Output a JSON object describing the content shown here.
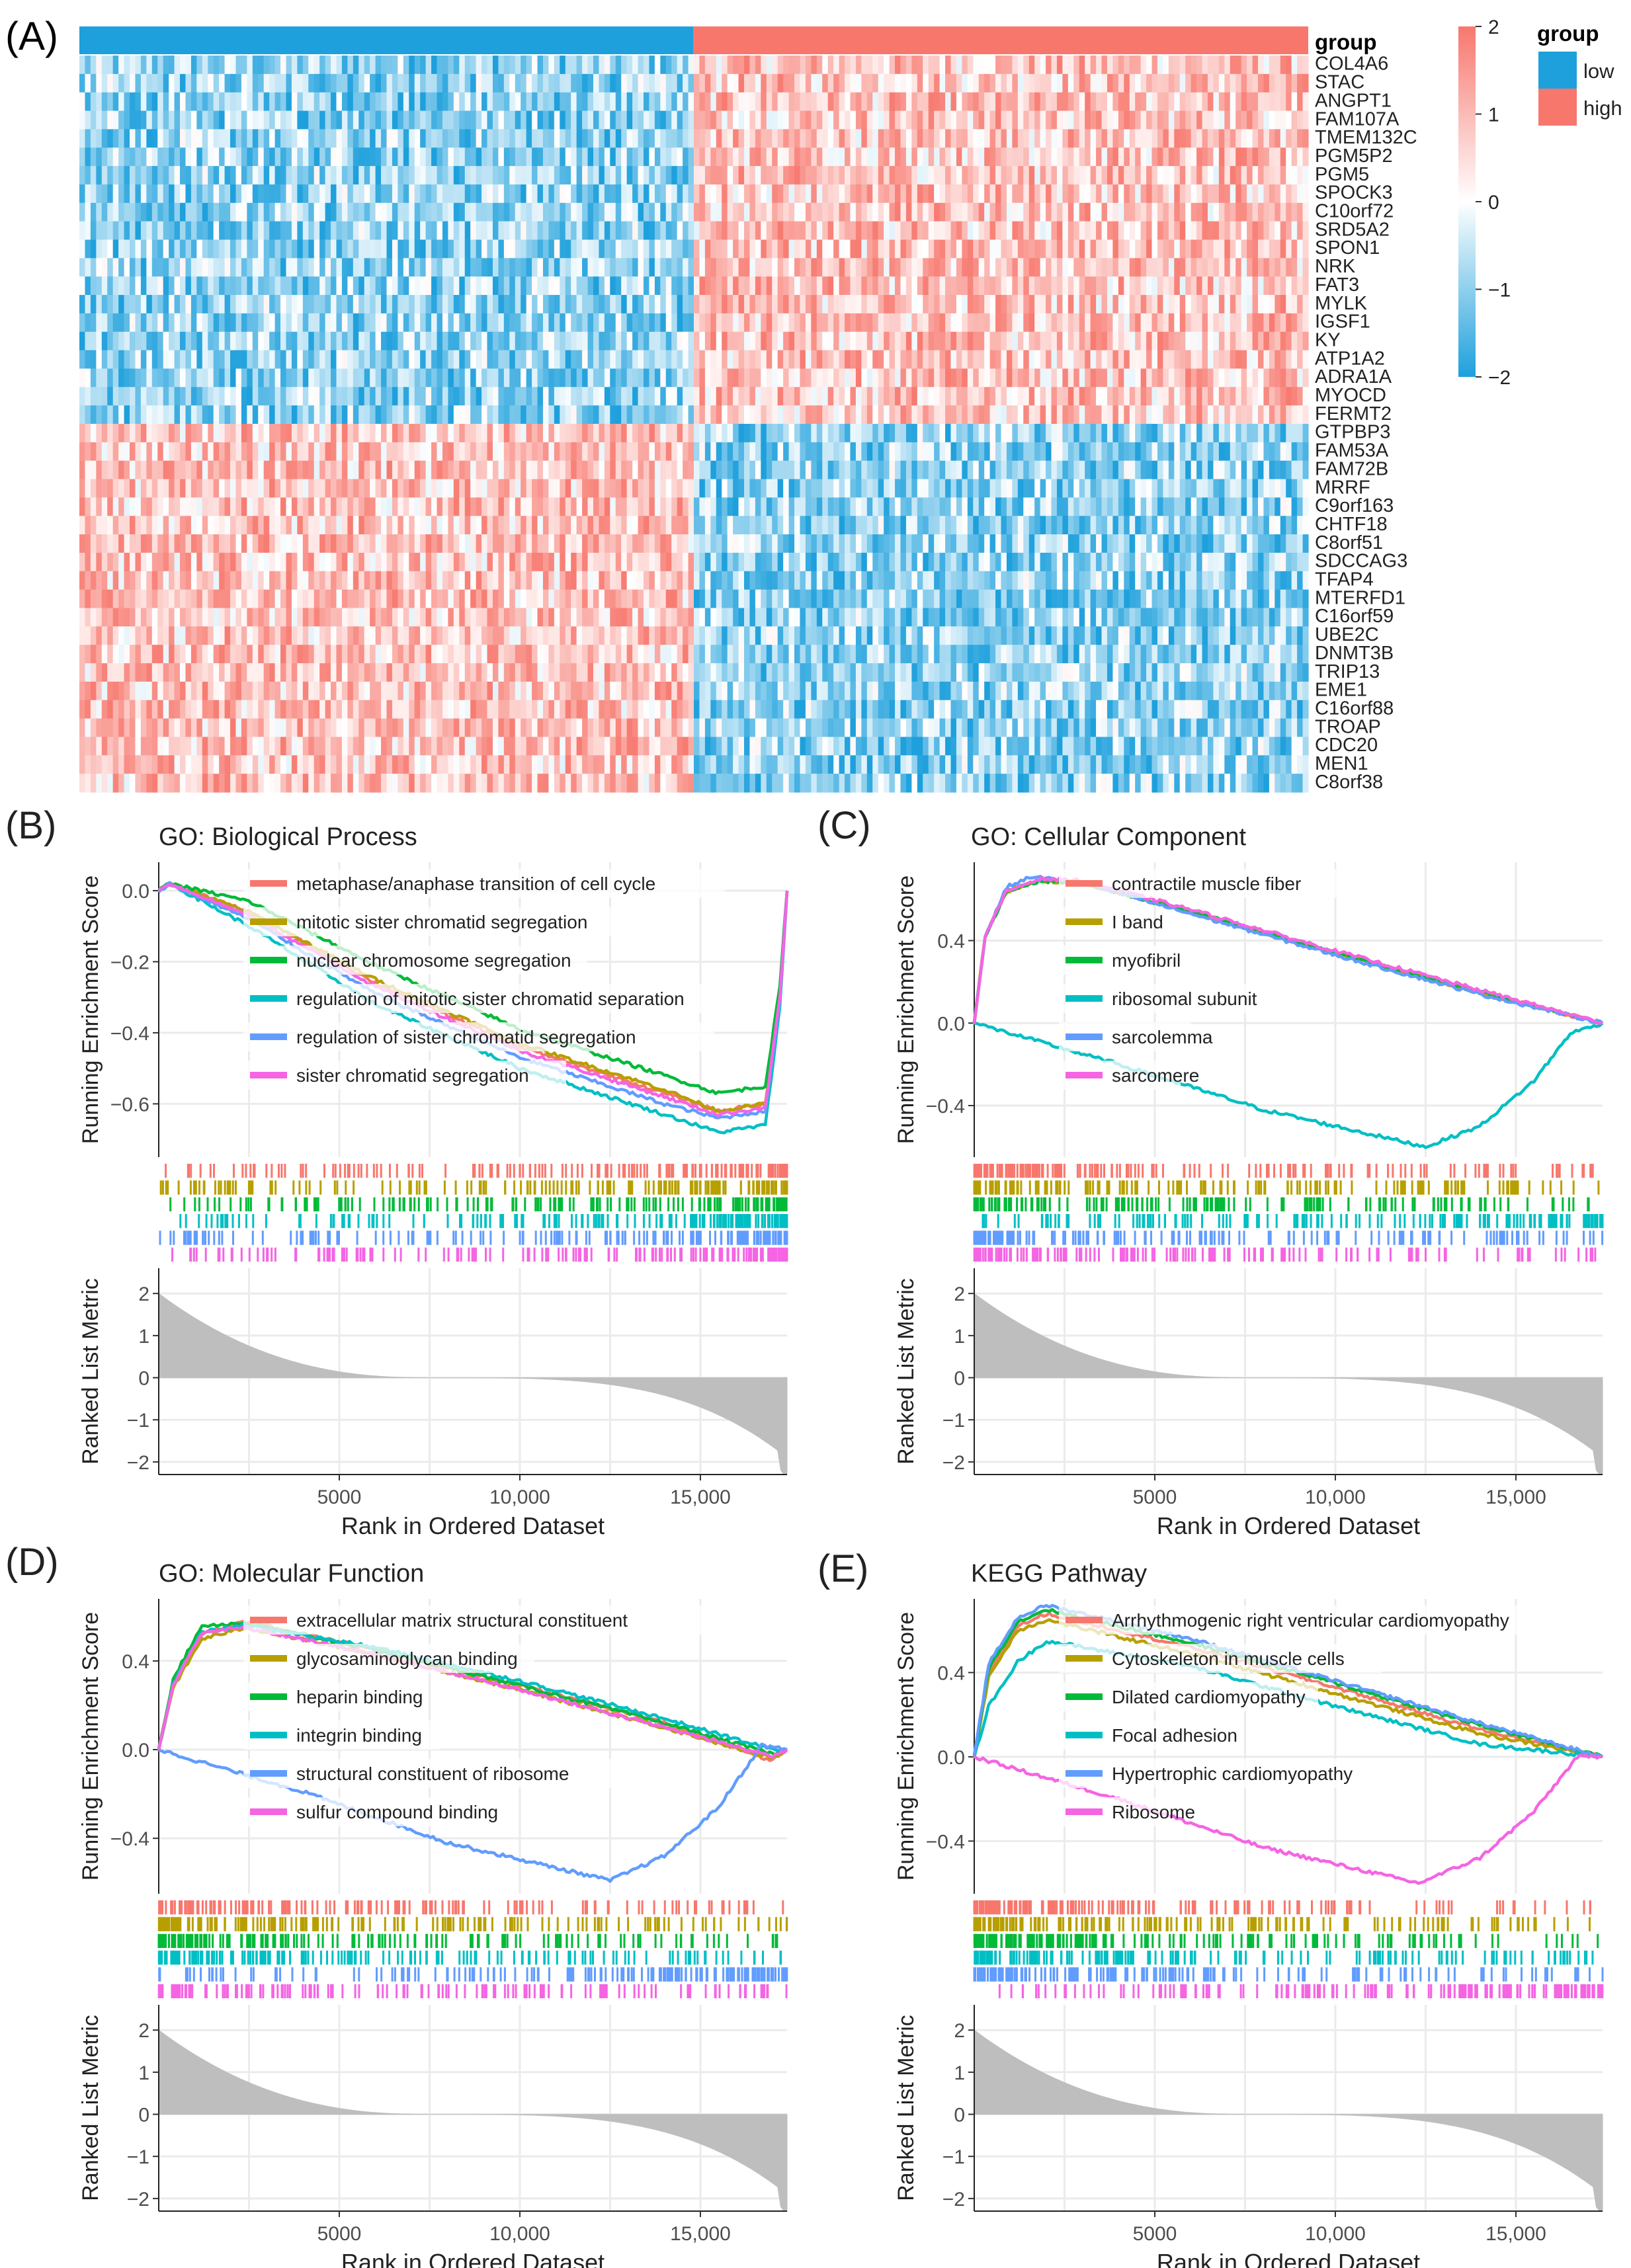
{
  "heatmap": {
    "panel_label": "(A)",
    "annotation_title": "group",
    "legend_title": "group",
    "legend_groups": [
      {
        "label": "low",
        "color": "#1ea0dc"
      },
      {
        "label": "high",
        "color": "#f7776d"
      }
    ],
    "colorbar_ticks": [
      "2",
      "1",
      "0",
      "−1",
      "−2"
    ],
    "colors": {
      "low": "#1ea0dc",
      "mid": "#ffffff",
      "high": "#f7776d"
    },
    "genes_up_in_high": [
      "COL4A6",
      "STAC",
      "ANGPT1",
      "FAM107A",
      "TMEM132C",
      "PGM5P2",
      "PGM5",
      "SPOCK3",
      "C10orf72",
      "SRD5A2",
      "SPON1",
      "NRK",
      "FAT3",
      "MYLK",
      "IGSF1",
      "KY",
      "ATP1A2",
      "ADRA1A",
      "MYOCD",
      "FERMT2"
    ],
    "genes_up_in_low": [
      "GTPBP3",
      "FAM53A",
      "FAM72B",
      "MRRF",
      "C9orf163",
      "CHTF18",
      "C8orf51",
      "SDCCAG3",
      "TFAP4",
      "MTERFD1",
      "C16orf59",
      "UBE2C",
      "DNMT3B",
      "TRIP13",
      "EME1",
      "C16orf88",
      "TROAP",
      "CDC20",
      "MEN1",
      "C8orf38"
    ]
  },
  "ylabel_es": "Running Enrichment Score",
  "ylabel_rank": "Ranked List Metric",
  "xlabel": "Rank in Ordered Dataset",
  "x_ticks": [
    "5000",
    "10,000",
    "15,000"
  ],
  "rank_ticks": [
    "2",
    "1",
    "0",
    "−1",
    "−2"
  ],
  "series_colors": [
    "#f7776d",
    "#b79f00",
    "#00ba38",
    "#00bfc4",
    "#619cff",
    "#f564e3"
  ],
  "chart_data": [
    {
      "type": "line",
      "panel_label": "(B)",
      "title": "GO: Biological Process",
      "xlim": [
        0,
        17400
      ],
      "ylim": [
        -0.75,
        0.08
      ],
      "yticks": [
        "0.0",
        "−0.2",
        "−0.4",
        "−0.6"
      ],
      "series": [
        {
          "name": "metaphase/anaphase transition of cell cycle",
          "points": [
            [
              0,
              0
            ],
            [
              300,
              0.02
            ],
            [
              2500,
              -0.06
            ],
            [
              6000,
              -0.26
            ],
            [
              10000,
              -0.44
            ],
            [
              14000,
              -0.57
            ],
            [
              15500,
              -0.62
            ],
            [
              16800,
              -0.6
            ],
            [
              17200,
              -0.3
            ],
            [
              17400,
              0
            ]
          ]
        },
        {
          "name": "mitotic sister chromatid segregation",
          "points": [
            [
              0,
              0
            ],
            [
              300,
              0.02
            ],
            [
              2500,
              -0.06
            ],
            [
              6000,
              -0.25
            ],
            [
              10000,
              -0.43
            ],
            [
              14000,
              -0.56
            ],
            [
              15500,
              -0.62
            ],
            [
              16800,
              -0.6
            ],
            [
              17200,
              -0.3
            ],
            [
              17400,
              0
            ]
          ]
        },
        {
          "name": "nuclear chromosome segregation",
          "points": [
            [
              0,
              0
            ],
            [
              300,
              0.02
            ],
            [
              2500,
              -0.03
            ],
            [
              6000,
              -0.21
            ],
            [
              10000,
              -0.39
            ],
            [
              14000,
              -0.52
            ],
            [
              15500,
              -0.57
            ],
            [
              16800,
              -0.55
            ],
            [
              17200,
              -0.27
            ],
            [
              17400,
              0
            ]
          ]
        },
        {
          "name": "regulation of mitotic sister chromatid separation",
          "points": [
            [
              0,
              0
            ],
            [
              300,
              0.02
            ],
            [
              2500,
              -0.1
            ],
            [
              6000,
              -0.32
            ],
            [
              10000,
              -0.5
            ],
            [
              14000,
              -0.63
            ],
            [
              15500,
              -0.68
            ],
            [
              16800,
              -0.66
            ],
            [
              17200,
              -0.33
            ],
            [
              17400,
              0
            ]
          ]
        },
        {
          "name": "regulation of sister chromatid segregation",
          "points": [
            [
              0,
              0
            ],
            [
              300,
              0.02
            ],
            [
              2500,
              -0.08
            ],
            [
              6000,
              -0.29
            ],
            [
              10000,
              -0.47
            ],
            [
              14000,
              -0.6
            ],
            [
              15500,
              -0.64
            ],
            [
              16800,
              -0.62
            ],
            [
              17200,
              -0.31
            ],
            [
              17400,
              0
            ]
          ]
        },
        {
          "name": "sister chromatid segregation",
          "points": [
            [
              0,
              0
            ],
            [
              300,
              0.02
            ],
            [
              2500,
              -0.07
            ],
            [
              6000,
              -0.27
            ],
            [
              10000,
              -0.45
            ],
            [
              14000,
              -0.58
            ],
            [
              15500,
              -0.63
            ],
            [
              16800,
              -0.61
            ],
            [
              17200,
              -0.3
            ],
            [
              17400,
              0
            ]
          ]
        }
      ]
    },
    {
      "type": "line",
      "panel_label": "(C)",
      "title": "GO: Cellular Component",
      "xlim": [
        0,
        17400
      ],
      "ylim": [
        -0.65,
        0.78
      ],
      "yticks": [
        "0.4",
        "0.0",
        "−0.4"
      ],
      "series": [
        {
          "name": "contractile muscle fiber",
          "points": [
            [
              0,
              0
            ],
            [
              300,
              0.42
            ],
            [
              900,
              0.64
            ],
            [
              1800,
              0.69
            ],
            [
              3000,
              0.68
            ],
            [
              6000,
              0.54
            ],
            [
              10000,
              0.34
            ],
            [
              14000,
              0.15
            ],
            [
              17400,
              0
            ]
          ]
        },
        {
          "name": "I band",
          "points": [
            [
              0,
              0
            ],
            [
              300,
              0.42
            ],
            [
              900,
              0.64
            ],
            [
              1800,
              0.69
            ],
            [
              3000,
              0.68
            ],
            [
              6000,
              0.54
            ],
            [
              10000,
              0.34
            ],
            [
              14000,
              0.15
            ],
            [
              17400,
              0
            ]
          ]
        },
        {
          "name": "myofibril",
          "points": [
            [
              0,
              0
            ],
            [
              300,
              0.42
            ],
            [
              900,
              0.64
            ],
            [
              1800,
              0.69
            ],
            [
              3000,
              0.68
            ],
            [
              6000,
              0.54
            ],
            [
              10000,
              0.34
            ],
            [
              14000,
              0.15
            ],
            [
              17400,
              0
            ]
          ]
        },
        {
          "name": "ribosomal subunit",
          "points": [
            [
              0,
              0
            ],
            [
              4000,
              -0.2
            ],
            [
              8000,
              -0.42
            ],
            [
              12500,
              -0.6
            ],
            [
              14000,
              -0.5
            ],
            [
              15500,
              -0.28
            ],
            [
              16500,
              -0.05
            ],
            [
              17400,
              0
            ]
          ]
        },
        {
          "name": "sarcolemma",
          "points": [
            [
              0,
              0
            ],
            [
              300,
              0.42
            ],
            [
              900,
              0.66
            ],
            [
              1600,
              0.71
            ],
            [
              3000,
              0.68
            ],
            [
              6000,
              0.53
            ],
            [
              10000,
              0.33
            ],
            [
              14000,
              0.14
            ],
            [
              17400,
              0
            ]
          ]
        },
        {
          "name": "sarcomere",
          "points": [
            [
              0,
              0
            ],
            [
              300,
              0.42
            ],
            [
              900,
              0.64
            ],
            [
              1800,
              0.7
            ],
            [
              3000,
              0.69
            ],
            [
              6000,
              0.55
            ],
            [
              10000,
              0.35
            ],
            [
              14000,
              0.16
            ],
            [
              17400,
              0
            ]
          ]
        }
      ]
    },
    {
      "type": "line",
      "panel_label": "(D)",
      "title": "GO: Molecular Function",
      "xlim": [
        0,
        17400
      ],
      "ylim": [
        -0.65,
        0.68
      ],
      "yticks": [
        "0.4",
        "0.0",
        "−0.4"
      ],
      "series": [
        {
          "name": "extracellular matrix structural constituent",
          "points": [
            [
              0,
              0
            ],
            [
              400,
              0.3
            ],
            [
              1200,
              0.52
            ],
            [
              2400,
              0.58
            ],
            [
              6000,
              0.45
            ],
            [
              10000,
              0.29
            ],
            [
              14000,
              0.12
            ],
            [
              17000,
              -0.05
            ],
            [
              17400,
              0
            ]
          ]
        },
        {
          "name": "glycosaminoglycan binding",
          "points": [
            [
              0,
              0
            ],
            [
              400,
              0.28
            ],
            [
              1200,
              0.5
            ],
            [
              2400,
              0.55
            ],
            [
              6000,
              0.43
            ],
            [
              10000,
              0.27
            ],
            [
              14000,
              0.1
            ],
            [
              17000,
              -0.04
            ],
            [
              17400,
              0
            ]
          ]
        },
        {
          "name": "heparin binding",
          "points": [
            [
              0,
              0
            ],
            [
              400,
              0.32
            ],
            [
              1200,
              0.56
            ],
            [
              2400,
              0.57
            ],
            [
              6000,
              0.45
            ],
            [
              10000,
              0.29
            ],
            [
              14000,
              0.12
            ],
            [
              17000,
              -0.02
            ],
            [
              17400,
              0
            ]
          ]
        },
        {
          "name": "integrin binding",
          "points": [
            [
              0,
              0
            ],
            [
              400,
              0.3
            ],
            [
              1200,
              0.53
            ],
            [
              2400,
              0.56
            ],
            [
              6000,
              0.46
            ],
            [
              10000,
              0.31
            ],
            [
              14000,
              0.14
            ],
            [
              17000,
              0.0
            ],
            [
              17400,
              0
            ]
          ]
        },
        {
          "name": "structural constituent of ribosome",
          "points": [
            [
              0,
              0
            ],
            [
              4000,
              -0.19
            ],
            [
              8000,
              -0.42
            ],
            [
              12500,
              -0.59
            ],
            [
              14000,
              -0.48
            ],
            [
              15500,
              -0.26
            ],
            [
              16700,
              0.02
            ],
            [
              17400,
              0
            ]
          ]
        },
        {
          "name": "sulfur compound binding",
          "points": [
            [
              0,
              0
            ],
            [
              400,
              0.29
            ],
            [
              1200,
              0.53
            ],
            [
              2400,
              0.55
            ],
            [
              6000,
              0.43
            ],
            [
              10000,
              0.27
            ],
            [
              14000,
              0.1
            ],
            [
              17000,
              -0.03
            ],
            [
              17400,
              0
            ]
          ]
        }
      ]
    },
    {
      "type": "line",
      "panel_label": "(E)",
      "title": "KEGG Pathway",
      "xlim": [
        0,
        17400
      ],
      "ylim": [
        -0.65,
        0.75
      ],
      "yticks": [
        "0.4",
        "0.0",
        "−0.4"
      ],
      "series": [
        {
          "name": "Arrhythmogenic right ventricular cardiomyopathy",
          "points": [
            [
              0,
              0
            ],
            [
              400,
              0.4
            ],
            [
              1200,
              0.62
            ],
            [
              2000,
              0.68
            ],
            [
              6000,
              0.52
            ],
            [
              10000,
              0.33
            ],
            [
              14000,
              0.13
            ],
            [
              17400,
              0
            ]
          ]
        },
        {
          "name": "Cytoskeleton in muscle cells",
          "points": [
            [
              0,
              0
            ],
            [
              400,
              0.38
            ],
            [
              1200,
              0.6
            ],
            [
              2000,
              0.65
            ],
            [
              6000,
              0.49
            ],
            [
              10000,
              0.3
            ],
            [
              14000,
              0.11
            ],
            [
              17400,
              0
            ]
          ]
        },
        {
          "name": "Dilated cardiomyopathy",
          "points": [
            [
              0,
              0
            ],
            [
              400,
              0.42
            ],
            [
              1200,
              0.64
            ],
            [
              2000,
              0.7
            ],
            [
              6000,
              0.54
            ],
            [
              10000,
              0.35
            ],
            [
              14000,
              0.15
            ],
            [
              17400,
              0
            ]
          ]
        },
        {
          "name": "Focal adhesion",
          "points": [
            [
              0,
              0
            ],
            [
              400,
              0.24
            ],
            [
              1200,
              0.45
            ],
            [
              2000,
              0.55
            ],
            [
              6000,
              0.43
            ],
            [
              10000,
              0.24
            ],
            [
              14000,
              0.06
            ],
            [
              17400,
              0
            ]
          ]
        },
        {
          "name": "Hypertrophic cardiomyopathy",
          "points": [
            [
              0,
              0
            ],
            [
              400,
              0.44
            ],
            [
              1200,
              0.66
            ],
            [
              2000,
              0.72
            ],
            [
              6000,
              0.56
            ],
            [
              10000,
              0.36
            ],
            [
              14000,
              0.16
            ],
            [
              17400,
              0
            ]
          ]
        },
        {
          "name": "Ribosome",
          "points": [
            [
              0,
              0
            ],
            [
              4000,
              -0.2
            ],
            [
              8000,
              -0.43
            ],
            [
              12300,
              -0.6
            ],
            [
              14000,
              -0.48
            ],
            [
              15500,
              -0.26
            ],
            [
              16700,
              0.0
            ],
            [
              17400,
              0
            ]
          ]
        }
      ]
    }
  ]
}
